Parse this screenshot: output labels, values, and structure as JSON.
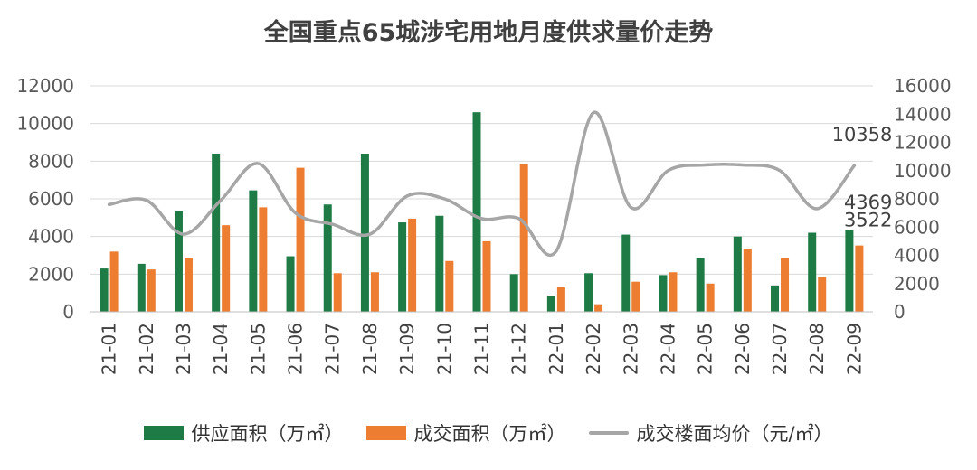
{
  "chart_data": {
    "type": "bar",
    "title": "全国重点65城涉宅用地月度供求量价走势",
    "categories": [
      "21-01",
      "21-02",
      "21-03",
      "21-04",
      "21-05",
      "21-06",
      "21-07",
      "21-08",
      "21-09",
      "21-10",
      "21-11",
      "21-12",
      "22-01",
      "22-02",
      "22-03",
      "22-04",
      "22-05",
      "22-06",
      "22-07",
      "22-08",
      "22-09"
    ],
    "left_axis": {
      "ylim": [
        0,
        12000
      ],
      "ticks": [
        "0",
        "2000",
        "4000",
        "6000",
        "8000",
        "10000",
        "12000"
      ]
    },
    "right_axis": {
      "ylim": [
        0,
        16000
      ],
      "ticks": [
        "0",
        "2000",
        "4000",
        "6000",
        "8000",
        "10000",
        "12000",
        "14000",
        "16000"
      ]
    },
    "series": [
      {
        "name": "供应面积（万㎡）",
        "kind": "bar",
        "axis": "left",
        "color": "#1e7b45",
        "values": [
          2300,
          2550,
          5350,
          8400,
          6450,
          2950,
          5700,
          8400,
          4750,
          5100,
          10600,
          2000,
          850,
          2050,
          4100,
          1950,
          2850,
          4000,
          1400,
          4200,
          4369
        ]
      },
      {
        "name": "成交面积（万㎡）",
        "kind": "bar",
        "axis": "left",
        "color": "#ed7d31",
        "values": [
          3200,
          2250,
          2850,
          4600,
          5550,
          7650,
          2050,
          2100,
          4950,
          2700,
          3750,
          7850,
          1300,
          400,
          1600,
          2100,
          1500,
          3350,
          2850,
          1850,
          3522
        ]
      },
      {
        "name": "成交楼面均价（元/㎡）",
        "kind": "line",
        "axis": "right",
        "color": "#a6a6a6",
        "values": [
          7600,
          7900,
          5500,
          7900,
          10500,
          7000,
          6200,
          5500,
          8200,
          8000,
          6600,
          6600,
          4300,
          14100,
          7400,
          10000,
          10400,
          10400,
          10000,
          7300,
          10358
        ]
      }
    ],
    "data_labels": {
      "supply_last": "4369",
      "deal_last": "3522",
      "price_last": "10358"
    },
    "legend": "bottom",
    "grid": true
  }
}
